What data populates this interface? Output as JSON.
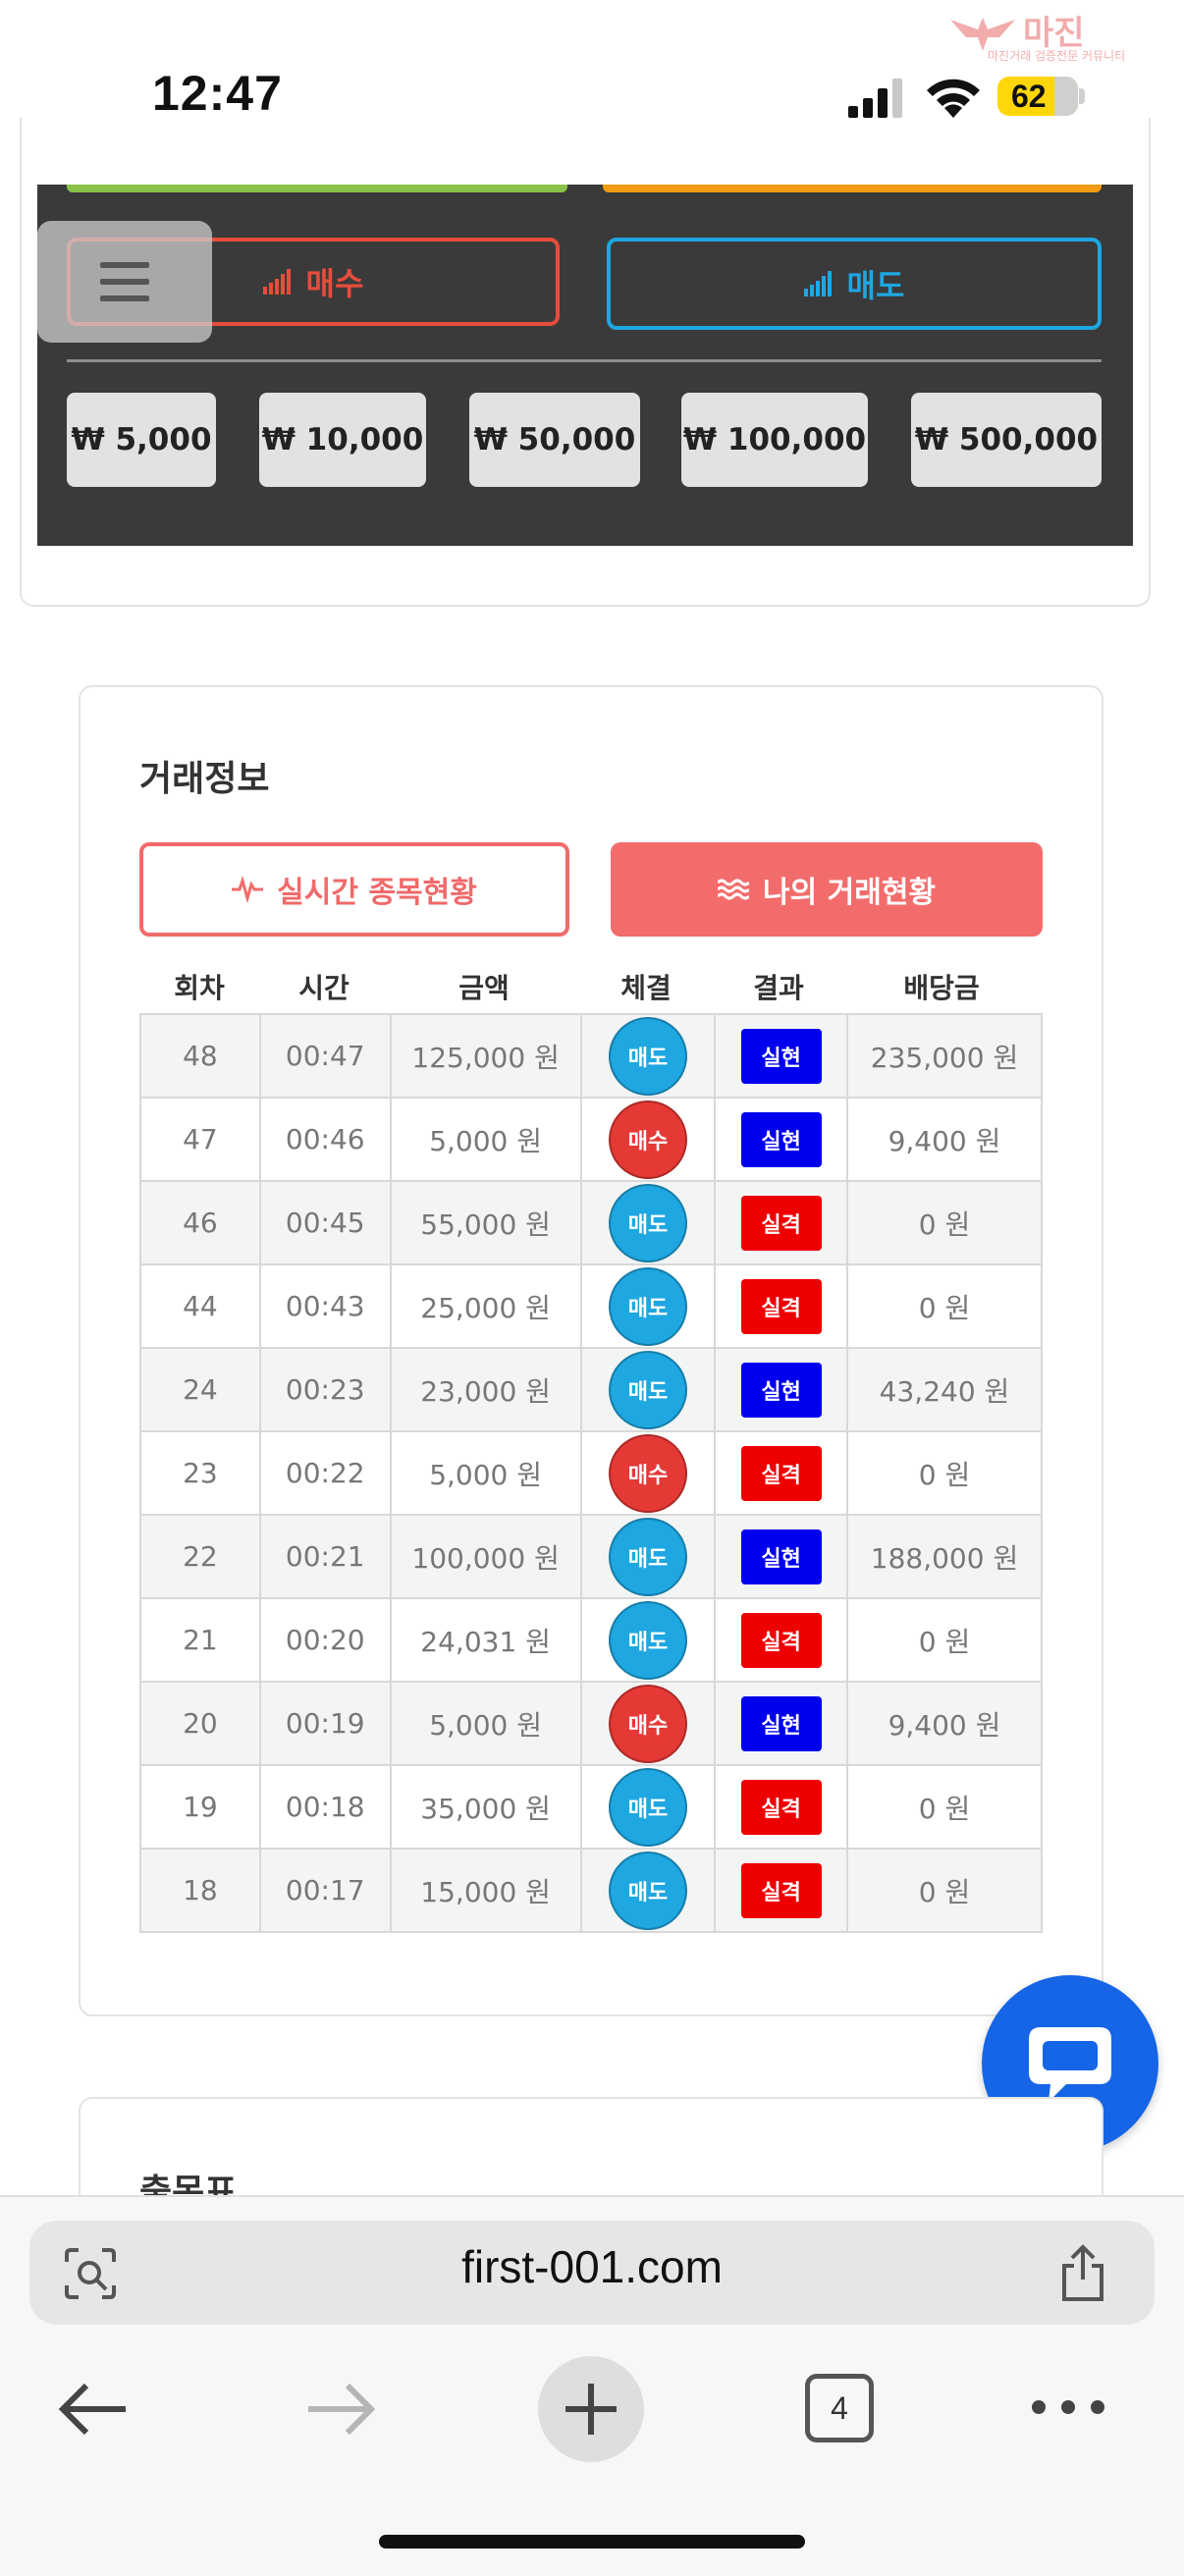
{
  "status_bar": {
    "time": "12:47",
    "battery": "62"
  },
  "watermark": {
    "title": "마진",
    "subtitle": "마진거래 검증전문 커뮤니티"
  },
  "trade_panel": {
    "buy_label": "매수",
    "sell_label": "매도",
    "amounts": [
      "₩ 5,000",
      "₩ 10,000",
      "₩ 50,000",
      "₩ 100,000",
      "₩ 500,000"
    ]
  },
  "trade_info": {
    "title": "거래정보",
    "tabs": [
      "실시간 종목현황",
      "나의 거래현황"
    ],
    "columns": [
      "회차",
      "시간",
      "금액",
      "체결",
      "결과",
      "배당금"
    ],
    "rows": [
      {
        "round": "48",
        "time": "00:47",
        "amount": "125,000 원",
        "side": "매도",
        "result": "실현",
        "payout": "235,000 원"
      },
      {
        "round": "47",
        "time": "00:46",
        "amount": "5,000 원",
        "side": "매수",
        "result": "실현",
        "payout": "9,400 원"
      },
      {
        "round": "46",
        "time": "00:45",
        "amount": "55,000 원",
        "side": "매도",
        "result": "실격",
        "payout": "0 원"
      },
      {
        "round": "44",
        "time": "00:43",
        "amount": "25,000 원",
        "side": "매도",
        "result": "실격",
        "payout": "0 원"
      },
      {
        "round": "24",
        "time": "00:23",
        "amount": "23,000 원",
        "side": "매도",
        "result": "실현",
        "payout": "43,240 원"
      },
      {
        "round": "23",
        "time": "00:22",
        "amount": "5,000 원",
        "side": "매수",
        "result": "실격",
        "payout": "0 원"
      },
      {
        "round": "22",
        "time": "00:21",
        "amount": "100,000 원",
        "side": "매도",
        "result": "실현",
        "payout": "188,000 원"
      },
      {
        "round": "21",
        "time": "00:20",
        "amount": "24,031 원",
        "side": "매도",
        "result": "실격",
        "payout": "0 원"
      },
      {
        "round": "20",
        "time": "00:19",
        "amount": "5,000 원",
        "side": "매수",
        "result": "실현",
        "payout": "9,400 원"
      },
      {
        "round": "19",
        "time": "00:18",
        "amount": "35,000 원",
        "side": "매도",
        "result": "실격",
        "payout": "0 원"
      },
      {
        "round": "18",
        "time": "00:17",
        "amount": "15,000 원",
        "side": "매도",
        "result": "실격",
        "payout": "0 원"
      }
    ]
  },
  "next_section": {
    "title": "출목표"
  },
  "browser": {
    "url": "first-001.com",
    "tab_count": "4"
  },
  "colors": {
    "buy": "#e53935",
    "sell": "#1ea7e1",
    "win": "#0000ee",
    "lose": "#ee0000",
    "accent": "#f36c6c",
    "chat": "#1565e6"
  },
  "icons": [
    "menu-icon",
    "signal-bars-icon",
    "pulse-icon",
    "waves-icon",
    "chat-icon",
    "lens-icon",
    "share-icon",
    "back-arrow-icon",
    "forward-arrow-icon",
    "plus-icon",
    "more-icon"
  ]
}
